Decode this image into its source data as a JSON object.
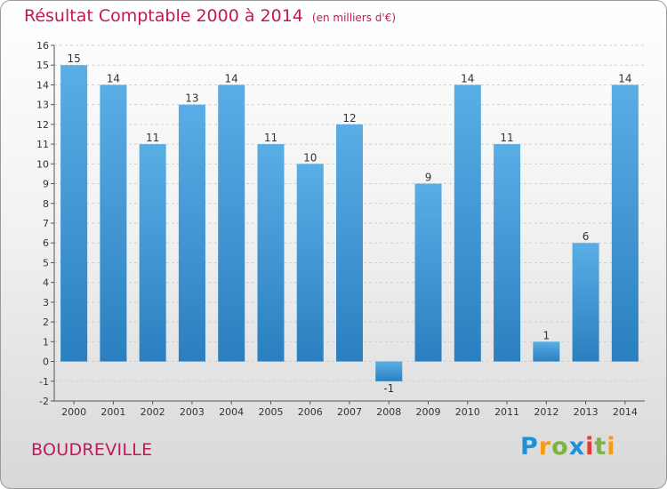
{
  "header": {
    "title": "Résultat Comptable 2000 à 2014",
    "unit": "(en milliers d'€)"
  },
  "footer": {
    "town": "BOUDREVILLE",
    "logo_text": "Proxiti"
  },
  "colors": {
    "title": "#c2185b",
    "bar_top": "#5aaee6",
    "bar_bottom": "#2a7fc0"
  },
  "chart_data": {
    "type": "bar",
    "categories": [
      "2000",
      "2001",
      "2002",
      "2003",
      "2004",
      "2005",
      "2006",
      "2007",
      "2008",
      "2009",
      "2010",
      "2011",
      "2012",
      "2013",
      "2014"
    ],
    "values": [
      15,
      14,
      11,
      13,
      14,
      11,
      10,
      12,
      -1,
      9,
      14,
      11,
      1,
      6,
      14
    ],
    "value_labels": [
      "15",
      "14",
      "11",
      "13",
      "14",
      "11",
      "10",
      "12",
      "-1",
      "9",
      "14",
      "11",
      "1",
      "6",
      "14"
    ],
    "title": "Résultat Comptable 2000 à 2014",
    "xlabel": "",
    "ylabel": "",
    "ylim": [
      -2,
      16
    ],
    "yticks": [
      -2,
      -1,
      0,
      1,
      2,
      3,
      4,
      5,
      6,
      7,
      8,
      9,
      10,
      11,
      12,
      13,
      14,
      15,
      16
    ],
    "grid": true,
    "legend": "none"
  }
}
